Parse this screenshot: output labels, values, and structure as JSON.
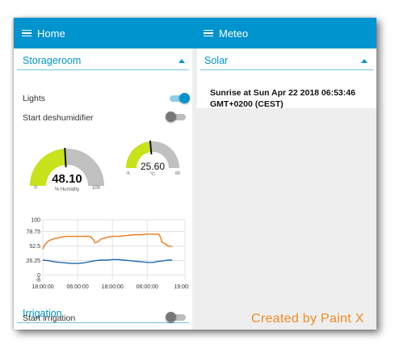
{
  "header": {
    "tabs": [
      {
        "label": "Home",
        "icon": "menu-icon"
      },
      {
        "label": "Meteo",
        "icon": "menu-icon"
      }
    ]
  },
  "home": {
    "group_title": "Storageroom",
    "switches": [
      {
        "label": "Lights",
        "state": "on"
      },
      {
        "label": "Start deshumidifier",
        "state": "off"
      }
    ],
    "humidity_gauge": {
      "value": "48.10",
      "value_num": 48.1,
      "unit": "% Humidity",
      "min": "0",
      "max": "100",
      "min_num": 0,
      "max_num": 100,
      "fill_color": "#c8e31b",
      "track_color": "#c0c0c0"
    },
    "temp_gauge": {
      "value": "25.60",
      "value_num": 25.6,
      "unit": "°C",
      "min": "-5",
      "max": "60",
      "min_num": -5,
      "max_num": 60,
      "fill_color": "#c8e31b",
      "track_color": "#c0c0c0"
    },
    "irrigation": {
      "group_title": "Irrigation",
      "switch_label": "Start irrigation",
      "state": "off"
    }
  },
  "meteo": {
    "group_title": "Solar",
    "sunrise_text": "Sunrise at Sun Apr 22 2018 06:53:46 GMT+0200 (CEST)"
  },
  "chart_data": {
    "type": "line",
    "yticks": [
      "100",
      "78.75",
      "52.5",
      "26.25",
      "0"
    ],
    "y_extra_tick": "-8",
    "ylim": [
      -8,
      100
    ],
    "xticks": [
      "18:00:00",
      "06:00:00",
      "18:00:00",
      "06:00:00",
      "19:00:00"
    ],
    "xlim": [
      0,
      49
    ],
    "series": [
      {
        "color": "#f07a16",
        "x": [
          0,
          0.7,
          2,
          4,
          6,
          8,
          10,
          12,
          14,
          15,
          16,
          16.8,
          17.5,
          18,
          19,
          20,
          22,
          24,
          26,
          28,
          30,
          32,
          34,
          36,
          38,
          39,
          40,
          40.6,
          41,
          42,
          43,
          44.6
        ],
        "y": [
          47,
          55,
          62,
          66,
          68,
          70,
          70,
          70,
          70,
          70,
          70,
          68,
          63,
          58,
          60,
          65,
          68,
          70,
          70,
          71,
          72,
          73,
          73,
          74,
          74,
          74,
          74,
          68,
          60,
          57,
          53,
          52
        ]
      },
      {
        "color": "#1f67b2",
        "x": [
          0,
          2,
          4,
          6,
          8,
          10,
          12,
          14,
          16,
          18,
          20,
          22,
          24,
          26,
          28,
          30,
          32,
          34,
          36,
          38,
          40,
          42,
          43,
          44.6
        ],
        "y": [
          27,
          26,
          24,
          23,
          22,
          21,
          21,
          22,
          24,
          26,
          27,
          27,
          28,
          28,
          27,
          26,
          25,
          24,
          23,
          23,
          25,
          26,
          27,
          27
        ]
      }
    ]
  },
  "watermark": "Created by Paint X"
}
